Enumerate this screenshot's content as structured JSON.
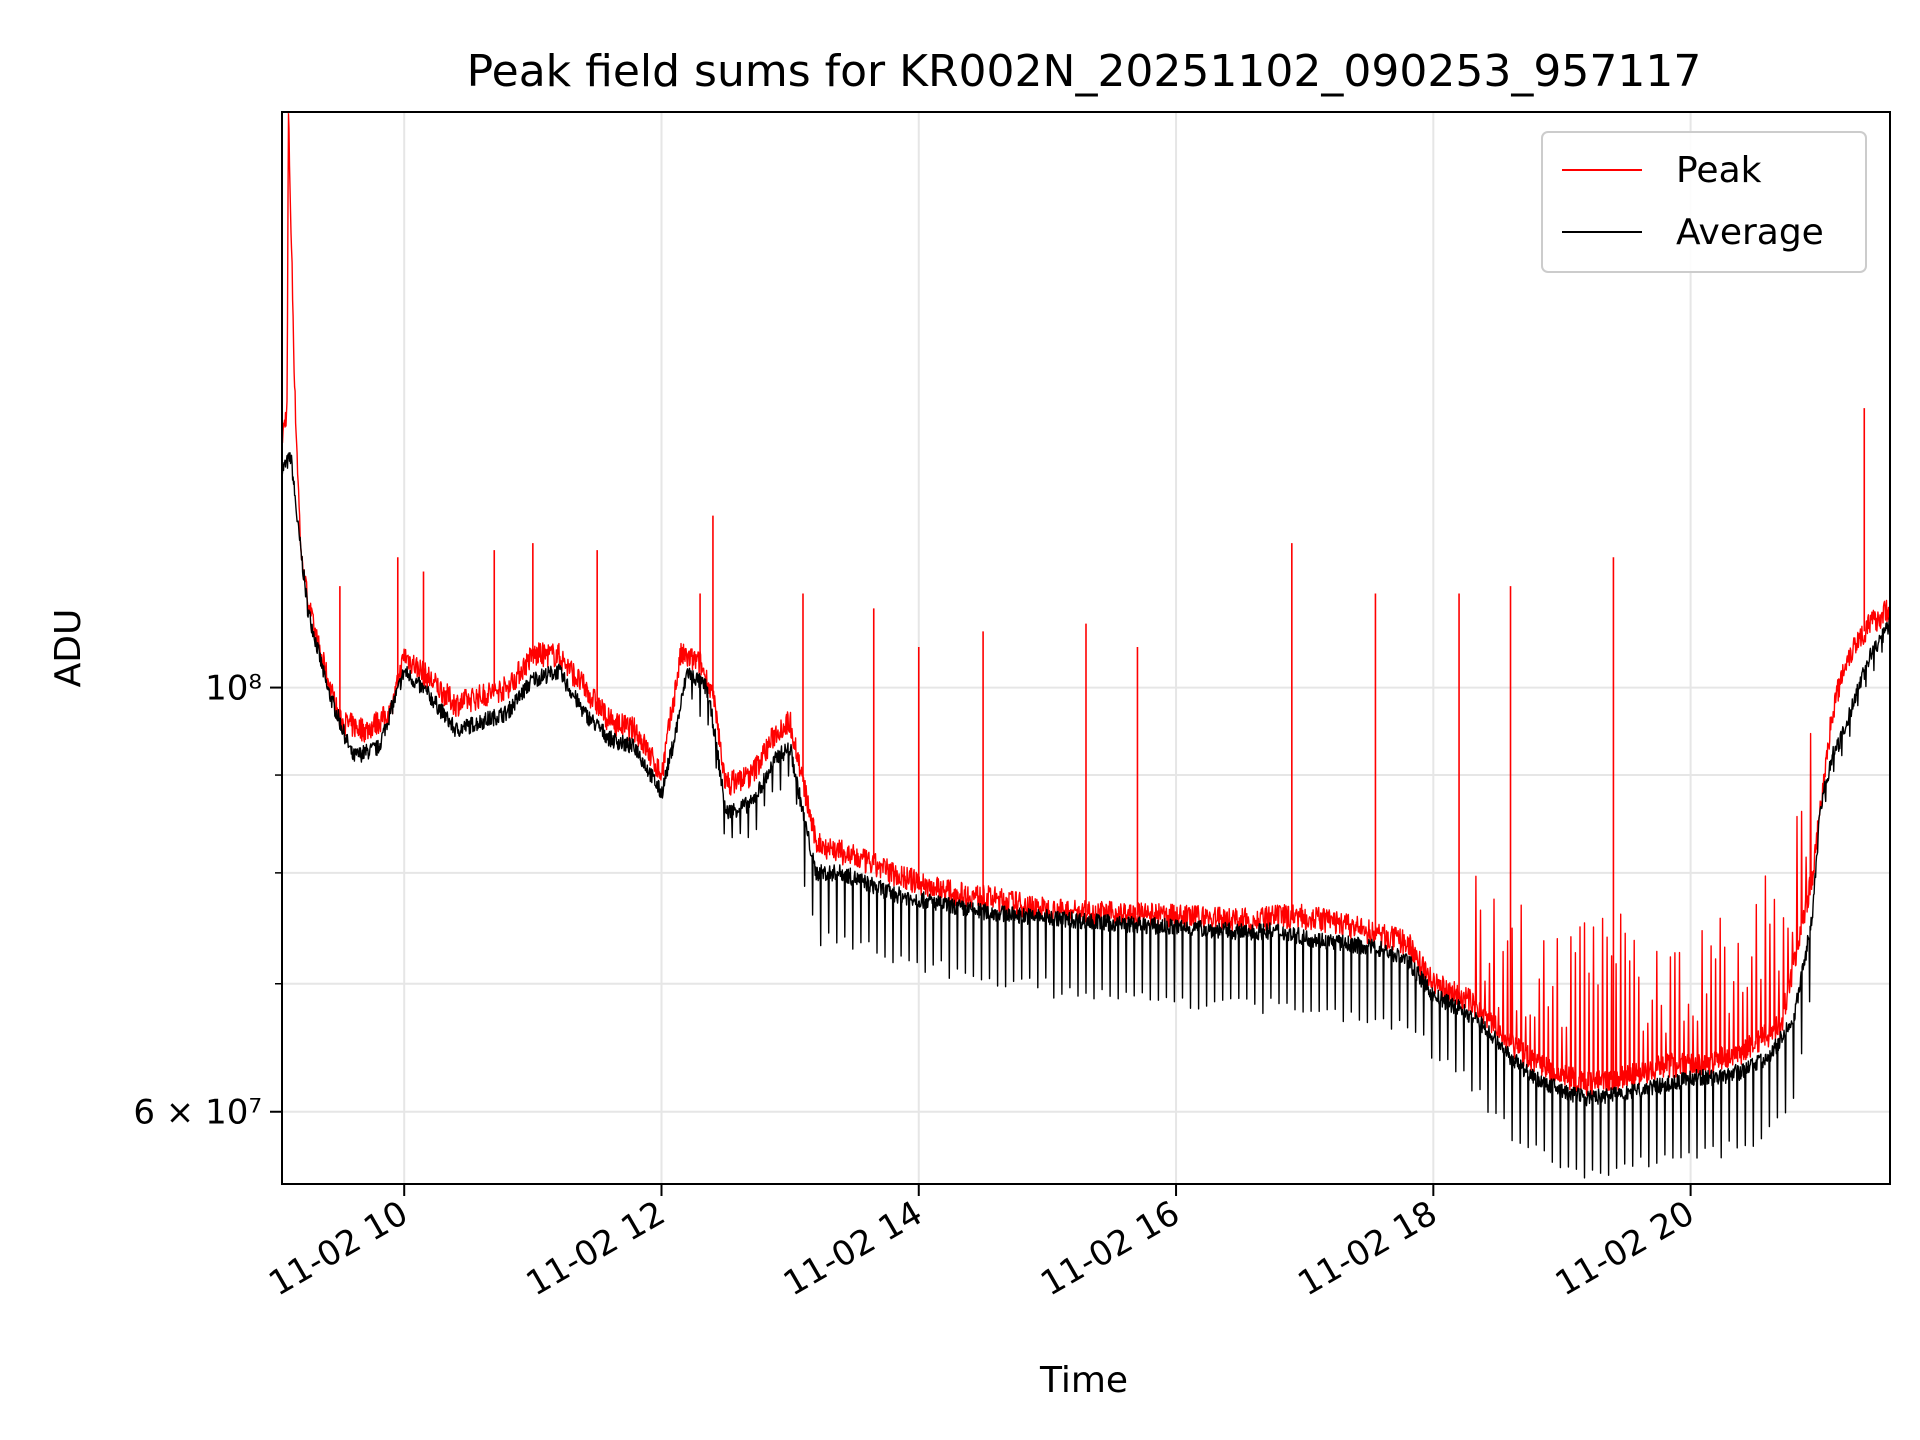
{
  "chart_data": {
    "type": "line",
    "title": "Peak field sums for KR002N_20251102_090253_957117",
    "xlabel": "Time",
    "ylabel": "ADU",
    "yscale": "log",
    "xlim": [
      9.05,
      21.55
    ],
    "ylim": [
      55000000,
      200000000
    ],
    "grid": true,
    "legend": {
      "location": "upper right",
      "entries": [
        "Peak",
        "Average"
      ]
    },
    "x_tick_labels": [
      {
        "value": 10,
        "label": "11-02 10"
      },
      {
        "value": 12,
        "label": "11-02 12"
      },
      {
        "value": 14,
        "label": "11-02 14"
      },
      {
        "value": 16,
        "label": "11-02 16"
      },
      {
        "value": 18,
        "label": "11-02 18"
      },
      {
        "value": 20,
        "label": "11-02 20"
      }
    ],
    "y_tick_labels": [
      {
        "value": 100000000,
        "label": "10⁸"
      },
      {
        "value": 60000000,
        "label": "6 × 10⁷"
      }
    ],
    "y_minor_ticks": [
      70000000,
      80000000,
      90000000
    ],
    "x_unit": "hours on 2025-11-02",
    "series": [
      {
        "name": "Average",
        "color": "#000000",
        "x": [
          9.05,
          9.12,
          9.17,
          9.25,
          9.4,
          9.6,
          9.8,
          10.0,
          10.2,
          10.4,
          10.6,
          10.8,
          11.0,
          11.2,
          11.4,
          11.6,
          11.8,
          12.0,
          12.1,
          12.2,
          12.35,
          12.4,
          12.5,
          12.7,
          12.9,
          13.0,
          13.1,
          13.2,
          13.4,
          13.6,
          13.8,
          14.0,
          14.2,
          14.4,
          14.6,
          14.8,
          15.0,
          15.3,
          15.6,
          15.9,
          16.2,
          16.5,
          16.8,
          17.0,
          17.3,
          17.6,
          17.8,
          18.0,
          18.2,
          18.4,
          18.6,
          18.8,
          19.0,
          19.2,
          19.4,
          19.6,
          19.8,
          20.0,
          20.2,
          20.4,
          20.6,
          20.8,
          20.95,
          21.0,
          21.1,
          21.2,
          21.3,
          21.4,
          21.55
        ],
        "values": [
          130000000,
          132000000,
          122000000,
          110000000,
          100000000,
          92000000,
          93000000,
          102000000,
          99000000,
          95000000,
          96000000,
          97000000,
          101000000,
          102000000,
          97000000,
          94000000,
          93000000,
          88000000,
          94000000,
          102000000,
          100000000,
          96000000,
          86000000,
          87000000,
          92000000,
          93000000,
          86000000,
          80000000,
          80000000,
          79000000,
          78000000,
          77500000,
          77000000,
          76500000,
          76200000,
          76000000,
          75800000,
          75500000,
          75200000,
          75000000,
          74800000,
          74500000,
          74600000,
          74000000,
          73500000,
          73000000,
          72000000,
          69000000,
          68000000,
          66500000,
          64000000,
          62500000,
          61500000,
          61000000,
          61200000,
          61500000,
          62000000,
          62500000,
          62500000,
          63000000,
          64000000,
          67000000,
          76000000,
          86000000,
          92000000,
          95000000,
          100000000,
          104000000,
          108000000
        ]
      },
      {
        "name": "Peak",
        "color": "#ff0000",
        "x": [
          9.05,
          9.09,
          9.1,
          9.15,
          9.2,
          9.3,
          9.5,
          9.7,
          9.9,
          10.0,
          10.2,
          10.4,
          10.6,
          10.8,
          11.0,
          11.2,
          11.4,
          11.6,
          11.8,
          12.0,
          12.15,
          12.3,
          12.4,
          12.5,
          12.7,
          12.9,
          13.0,
          13.2,
          13.4,
          13.6,
          13.8,
          14.0,
          14.3,
          14.6,
          15.0,
          15.4,
          15.8,
          16.2,
          16.6,
          16.9,
          17.2,
          17.5,
          17.8,
          18.0,
          18.3,
          18.6,
          18.9,
          19.2,
          19.5,
          19.8,
          20.1,
          20.4,
          20.7,
          20.95,
          21.1,
          21.2,
          21.3,
          21.4,
          21.55
        ],
        "values": [
          135000000,
          140000000,
          200000000,
          142000000,
          116000000,
          107000000,
          96000000,
          95000000,
          97000000,
          104000000,
          101000000,
          98000000,
          99000000,
          100000000,
          104000000,
          104000000,
          100000000,
          96000000,
          95000000,
          90000000,
          104000000,
          103000000,
          99000000,
          89000000,
          90000000,
          95000000,
          96000000,
          83000000,
          82000000,
          81000000,
          80000000,
          79000000,
          78000000,
          77500000,
          76500000,
          76200000,
          76000000,
          75800000,
          75500000,
          76000000,
          75500000,
          74500000,
          73500000,
          70000000,
          68500000,
          65000000,
          63000000,
          62000000,
          62500000,
          63500000,
          63500000,
          64500000,
          66500000,
          80000000,
          97000000,
          103000000,
          106000000,
          108000000,
          110000000
        ]
      }
    ],
    "annotated_spikes_peak": [
      {
        "x": 9.1,
        "value": 200000000
      },
      {
        "x": 9.5,
        "value": 113000000
      },
      {
        "x": 9.95,
        "value": 117000000
      },
      {
        "x": 10.15,
        "value": 115000000
      },
      {
        "x": 10.7,
        "value": 118000000
      },
      {
        "x": 11.0,
        "value": 119000000
      },
      {
        "x": 11.5,
        "value": 118000000
      },
      {
        "x": 12.3,
        "value": 112000000
      },
      {
        "x": 12.4,
        "value": 123000000
      },
      {
        "x": 13.1,
        "value": 112000000
      },
      {
        "x": 13.65,
        "value": 110000000
      },
      {
        "x": 14.0,
        "value": 105000000
      },
      {
        "x": 14.5,
        "value": 107000000
      },
      {
        "x": 15.3,
        "value": 108000000
      },
      {
        "x": 15.7,
        "value": 105000000
      },
      {
        "x": 16.9,
        "value": 119000000
      },
      {
        "x": 17.55,
        "value": 112000000
      },
      {
        "x": 18.2,
        "value": 112000000
      },
      {
        "x": 18.6,
        "value": 113000000
      },
      {
        "x": 19.4,
        "value": 117000000
      },
      {
        "x": 21.35,
        "value": 140000000
      }
    ]
  },
  "legend_lines": {
    "peak": "Peak",
    "average": "Average"
  }
}
